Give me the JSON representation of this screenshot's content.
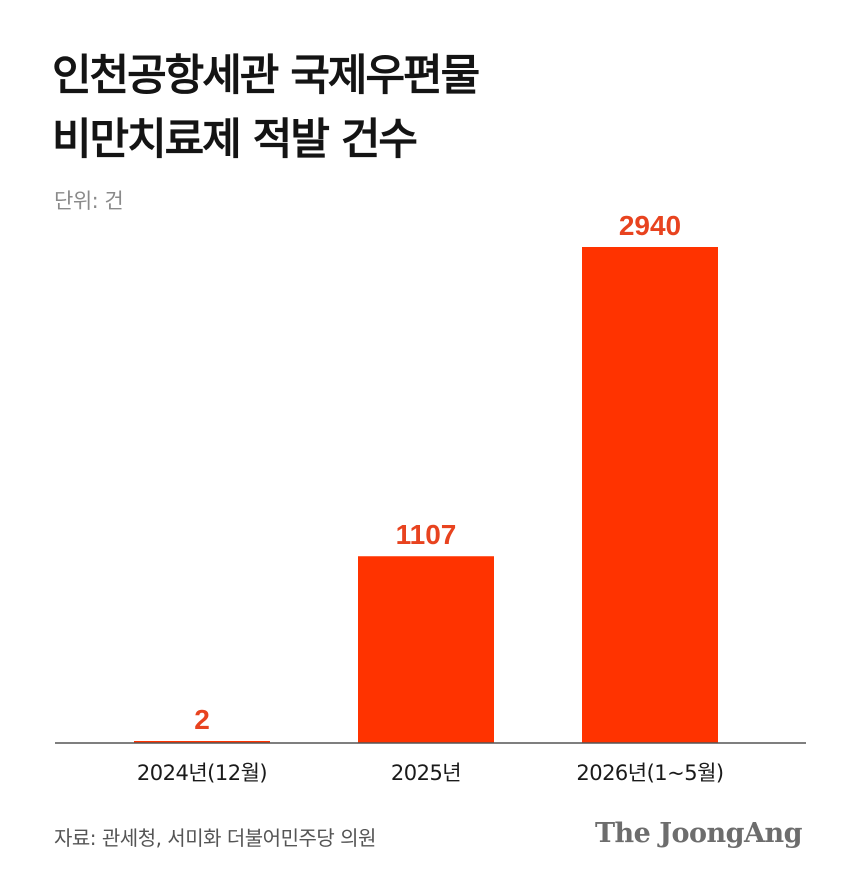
{
  "header": {
    "title_line1": "인천공항세관 국제우편물",
    "title_line2": "비만치료제 적발 건수",
    "unit": "단위: 건"
  },
  "colors": {
    "bar": "#ff3300",
    "label": "#e8431f",
    "axis": "#555555"
  },
  "chart_data": {
    "type": "bar",
    "title": "인천공항세관 국제우편물 비만치료제 적발 건수",
    "ylabel": "",
    "xlabel": "",
    "unit": "단위: 건",
    "categories": [
      "2024년(12월)",
      "2025년",
      "2026년(1~5월)"
    ],
    "values": [
      2,
      1107,
      2940
    ],
    "value_labels": [
      "2",
      "1107",
      "2940"
    ],
    "ylim": [
      0,
      2940
    ],
    "grid": false,
    "legend": "none"
  },
  "footer": {
    "source": "자료: 관세청, 서미화 더불어민주당 의원",
    "brand": "The JoongAng"
  }
}
